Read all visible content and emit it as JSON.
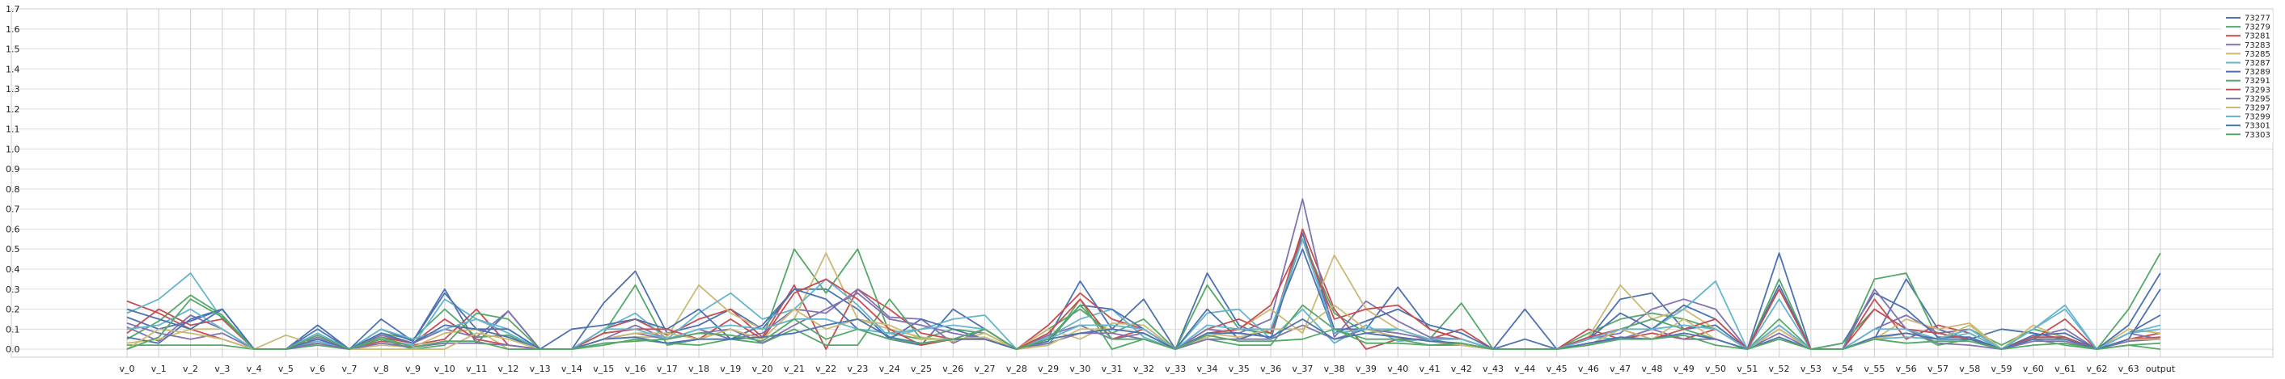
{
  "chart_data": {
    "type": "line",
    "title": "",
    "xlabel": "",
    "ylabel": "",
    "ylim": [
      -0.04,
      1.7
    ],
    "yticks": [
      0.0,
      0.1,
      0.2,
      0.3,
      0.4,
      0.5,
      0.6,
      0.7,
      0.8,
      0.9,
      1.0,
      1.1,
      1.2,
      1.3,
      1.4,
      1.5,
      1.6,
      1.7
    ],
    "ytick_labels": [
      "0.0",
      "0.1",
      "0.2",
      "0.3",
      "0.4",
      "0.5",
      "0.6",
      "0.7",
      "0.8",
      "0.9",
      "1.0",
      "1.1",
      "1.2",
      "1.3",
      "1.4",
      "1.5",
      "1.6",
      "1.7"
    ],
    "grid": true,
    "legend_position": "top-right",
    "categories": [
      "v_0",
      "v_1",
      "v_2",
      "v_3",
      "v_4",
      "v_5",
      "v_6",
      "v_7",
      "v_8",
      "v_9",
      "v_10",
      "v_11",
      "v_12",
      "v_13",
      "v_14",
      "v_15",
      "v_16",
      "v_17",
      "v_18",
      "v_19",
      "v_20",
      "v_21",
      "v_22",
      "v_23",
      "v_24",
      "v_25",
      "v_26",
      "v_27",
      "v_28",
      "v_29",
      "v_30",
      "v_31",
      "v_32",
      "v_33",
      "v_34",
      "v_35",
      "v_36",
      "v_37",
      "v_38",
      "v_39",
      "v_40",
      "v_41",
      "v_42",
      "v_43",
      "v_44",
      "v_45",
      "v_46",
      "v_47",
      "v_48",
      "v_49",
      "v_50",
      "v_51",
      "v_52",
      "v_53",
      "v_54",
      "v_55",
      "v_56",
      "v_57",
      "v_58",
      "v_59",
      "v_60",
      "v_61",
      "v_62",
      "v_63",
      "output"
    ],
    "series": [
      {
        "name": "73277",
        "color": "#4c72b0",
        "values": [
          0.16,
          0.1,
          0.14,
          0.2,
          0.0,
          0.0,
          0.12,
          0.0,
          0.15,
          0.04,
          0.3,
          0.03,
          0.19,
          0.0,
          0.0,
          0.23,
          0.39,
          0.08,
          0.12,
          0.2,
          0.1,
          0.3,
          0.3,
          0.2,
          0.05,
          0.02,
          0.2,
          0.1,
          0.0,
          0.06,
          0.34,
          0.1,
          0.25,
          0.0,
          0.38,
          0.12,
          0.05,
          0.58,
          0.1,
          0.1,
          0.31,
          0.1,
          0.05,
          0.0,
          0.2,
          0.0,
          0.05,
          0.25,
          0.28,
          0.1,
          0.12,
          0.0,
          0.48,
          0.0,
          0.0,
          0.05,
          0.35,
          0.1,
          0.05,
          0.1,
          0.08,
          0.05,
          0.0,
          0.08,
          0.17
        ]
      },
      {
        "name": "73279",
        "color": "#55a868",
        "values": [
          0.05,
          0.14,
          0.27,
          0.17,
          0.0,
          0.0,
          0.05,
          0.0,
          0.08,
          0.05,
          0.2,
          0.06,
          0.07,
          0.0,
          0.0,
          0.08,
          0.32,
          0.02,
          0.05,
          0.1,
          0.05,
          0.5,
          0.28,
          0.5,
          0.08,
          0.05,
          0.1,
          0.08,
          0.0,
          0.1,
          0.2,
          0.08,
          0.15,
          0.0,
          0.32,
          0.1,
          0.08,
          0.55,
          0.18,
          0.08,
          0.1,
          0.05,
          0.23,
          0.0,
          0.0,
          0.0,
          0.08,
          0.15,
          0.18,
          0.15,
          0.1,
          0.0,
          0.35,
          0.0,
          0.0,
          0.35,
          0.38,
          0.05,
          0.1,
          0.02,
          0.1,
          0.06,
          0.0,
          0.2,
          0.48
        ]
      },
      {
        "name": "73281",
        "color": "#c44e52",
        "values": [
          0.24,
          0.18,
          0.1,
          0.05,
          0.0,
          0.0,
          0.03,
          0.0,
          0.04,
          0.02,
          0.05,
          0.2,
          0.02,
          0.0,
          0.0,
          0.1,
          0.15,
          0.07,
          0.15,
          0.2,
          0.06,
          0.32,
          0.0,
          0.3,
          0.2,
          0.08,
          0.05,
          0.1,
          0.0,
          0.12,
          0.28,
          0.15,
          0.1,
          0.0,
          0.1,
          0.15,
          0.08,
          0.6,
          0.2,
          0.0,
          0.05,
          0.05,
          0.1,
          0.0,
          0.0,
          0.0,
          0.1,
          0.05,
          0.08,
          0.05,
          0.1,
          0.0,
          0.1,
          0.0,
          0.0,
          0.25,
          0.05,
          0.12,
          0.08,
          0.0,
          0.05,
          0.15,
          0.0,
          0.05,
          0.08
        ]
      },
      {
        "name": "73283",
        "color": "#8172b2",
        "values": [
          0.11,
          0.04,
          0.17,
          0.1,
          0.0,
          0.0,
          0.06,
          0.0,
          0.07,
          0.03,
          0.1,
          0.06,
          0.19,
          0.0,
          0.0,
          0.05,
          0.12,
          0.05,
          0.1,
          0.05,
          0.08,
          0.2,
          0.18,
          0.3,
          0.16,
          0.15,
          0.03,
          0.1,
          0.0,
          0.07,
          0.12,
          0.05,
          0.08,
          0.0,
          0.1,
          0.08,
          0.15,
          0.75,
          0.06,
          0.24,
          0.14,
          0.06,
          0.05,
          0.0,
          0.0,
          0.0,
          0.05,
          0.08,
          0.2,
          0.25,
          0.2,
          0.0,
          0.12,
          0.0,
          0.0,
          0.1,
          0.17,
          0.08,
          0.1,
          0.0,
          0.06,
          0.1,
          0.0,
          0.08,
          0.05
        ]
      },
      {
        "name": "73285",
        "color": "#ccb974",
        "values": [
          0.03,
          0.05,
          0.1,
          0.1,
          0.0,
          0.07,
          0.02,
          0.0,
          0.02,
          0.01,
          0.08,
          0.1,
          0.0,
          0.0,
          0.0,
          0.05,
          0.06,
          0.06,
          0.32,
          0.18,
          0.1,
          0.15,
          0.48,
          0.15,
          0.1,
          0.06,
          0.04,
          0.08,
          0.0,
          0.1,
          0.05,
          0.13,
          0.12,
          0.0,
          0.06,
          0.1,
          0.2,
          0.08,
          0.47,
          0.2,
          0.1,
          0.05,
          0.02,
          0.0,
          0.0,
          0.0,
          0.06,
          0.32,
          0.15,
          0.2,
          0.1,
          0.0,
          0.3,
          0.0,
          0.0,
          0.05,
          0.15,
          0.1,
          0.13,
          0.0,
          0.12,
          0.05,
          0.0,
          0.1,
          0.08
        ]
      },
      {
        "name": "73287",
        "color": "#64b5cd",
        "values": [
          0.18,
          0.25,
          0.38,
          0.15,
          0.0,
          0.0,
          0.04,
          0.0,
          0.05,
          0.02,
          0.25,
          0.15,
          0.08,
          0.0,
          0.0,
          0.1,
          0.18,
          0.05,
          0.18,
          0.28,
          0.15,
          0.2,
          0.35,
          0.22,
          0.06,
          0.1,
          0.15,
          0.17,
          0.0,
          0.06,
          0.15,
          0.2,
          0.06,
          0.0,
          0.18,
          0.2,
          0.05,
          0.2,
          0.03,
          0.12,
          0.04,
          0.05,
          0.05,
          0.0,
          0.0,
          0.0,
          0.06,
          0.05,
          0.1,
          0.2,
          0.34,
          0.0,
          0.25,
          0.0,
          0.0,
          0.05,
          0.06,
          0.05,
          0.08,
          0.0,
          0.1,
          0.22,
          0.0,
          0.08,
          0.1
        ]
      },
      {
        "name": "73289",
        "color": "#4c72b0",
        "values": [
          0.06,
          0.03,
          0.15,
          0.2,
          0.0,
          0.0,
          0.1,
          0.0,
          0.1,
          0.04,
          0.28,
          0.1,
          0.06,
          0.0,
          0.1,
          0.12,
          0.15,
          0.1,
          0.2,
          0.05,
          0.12,
          0.3,
          0.25,
          0.1,
          0.05,
          0.15,
          0.1,
          0.05,
          0.0,
          0.04,
          0.22,
          0.2,
          0.1,
          0.0,
          0.2,
          0.05,
          0.1,
          0.5,
          0.08,
          0.14,
          0.2,
          0.12,
          0.08,
          0.0,
          0.05,
          0.0,
          0.05,
          0.18,
          0.1,
          0.22,
          0.15,
          0.0,
          0.32,
          0.0,
          0.03,
          0.28,
          0.2,
          0.06,
          0.06,
          0.0,
          0.07,
          0.08,
          0.0,
          0.12,
          0.38
        ]
      },
      {
        "name": "73291",
        "color": "#55a868",
        "values": [
          0.02,
          0.02,
          0.02,
          0.02,
          0.0,
          0.0,
          0.02,
          0.0,
          0.05,
          0.0,
          0.02,
          0.18,
          0.15,
          0.0,
          0.0,
          0.02,
          0.05,
          0.03,
          0.02,
          0.05,
          0.03,
          0.1,
          0.02,
          0.02,
          0.25,
          0.05,
          0.05,
          0.1,
          0.0,
          0.02,
          0.25,
          0.0,
          0.05,
          0.0,
          0.05,
          0.02,
          0.02,
          0.22,
          0.1,
          0.05,
          0.05,
          0.02,
          0.02,
          0.0,
          0.0,
          0.0,
          0.02,
          0.1,
          0.15,
          0.1,
          0.05,
          0.0,
          0.15,
          0.0,
          0.03,
          0.2,
          0.1,
          0.02,
          0.05,
          0.0,
          0.05,
          0.02,
          0.0,
          0.02,
          0.03
        ]
      },
      {
        "name": "73293",
        "color": "#c44e52",
        "values": [
          0.08,
          0.2,
          0.12,
          0.15,
          0.0,
          0.0,
          0.05,
          0.0,
          0.06,
          0.03,
          0.15,
          0.05,
          0.02,
          0.0,
          0.0,
          0.08,
          0.1,
          0.1,
          0.05,
          0.15,
          0.05,
          0.28,
          0.35,
          0.25,
          0.1,
          0.02,
          0.05,
          0.05,
          0.0,
          0.08,
          0.25,
          0.05,
          0.1,
          0.0,
          0.08,
          0.1,
          0.22,
          0.55,
          0.15,
          0.2,
          0.22,
          0.1,
          0.05,
          0.0,
          0.0,
          0.0,
          0.06,
          0.1,
          0.05,
          0.1,
          0.15,
          0.0,
          0.3,
          0.0,
          0.0,
          0.2,
          0.1,
          0.08,
          0.05,
          0.0,
          0.06,
          0.06,
          0.0,
          0.05,
          0.06
        ]
      },
      {
        "name": "73295",
        "color": "#8172b2",
        "values": [
          0.13,
          0.08,
          0.05,
          0.08,
          0.0,
          0.0,
          0.03,
          0.0,
          0.03,
          0.01,
          0.03,
          0.03,
          0.02,
          0.0,
          0.0,
          0.05,
          0.08,
          0.05,
          0.08,
          0.1,
          0.03,
          0.12,
          0.2,
          0.28,
          0.15,
          0.12,
          0.08,
          0.05,
          0.0,
          0.03,
          0.08,
          0.08,
          0.05,
          0.0,
          0.05,
          0.05,
          0.05,
          0.12,
          0.05,
          0.1,
          0.08,
          0.05,
          0.02,
          0.0,
          0.0,
          0.0,
          0.03,
          0.05,
          0.1,
          0.05,
          0.05,
          0.0,
          0.08,
          0.0,
          0.0,
          0.3,
          0.1,
          0.03,
          0.02,
          0.0,
          0.04,
          0.04,
          0.0,
          0.04,
          0.05
        ]
      },
      {
        "name": "73297",
        "color": "#ccb974",
        "values": [
          0.0,
          0.1,
          0.08,
          0.05,
          0.0,
          0.0,
          0.05,
          0.0,
          0.0,
          0.0,
          0.0,
          0.08,
          0.05,
          0.0,
          0.0,
          0.05,
          0.08,
          0.08,
          0.05,
          0.1,
          0.05,
          0.2,
          0.1,
          0.15,
          0.12,
          0.05,
          0.05,
          0.06,
          0.0,
          0.02,
          0.1,
          0.1,
          0.08,
          0.0,
          0.08,
          0.06,
          0.1,
          0.1,
          0.22,
          0.1,
          0.06,
          0.04,
          0.02,
          0.0,
          0.0,
          0.0,
          0.02,
          0.1,
          0.05,
          0.15,
          0.05,
          0.0,
          0.1,
          0.0,
          0.0,
          0.05,
          0.08,
          0.05,
          0.12,
          0.0,
          0.05,
          0.05,
          0.0,
          0.05,
          0.05
        ]
      },
      {
        "name": "73299",
        "color": "#64b5cd",
        "values": [
          0.1,
          0.12,
          0.2,
          0.1,
          0.0,
          0.0,
          0.08,
          0.0,
          0.1,
          0.05,
          0.1,
          0.15,
          0.1,
          0.0,
          0.0,
          0.1,
          0.1,
          0.05,
          0.1,
          0.12,
          0.1,
          0.15,
          0.15,
          0.1,
          0.08,
          0.1,
          0.12,
          0.1,
          0.0,
          0.05,
          0.12,
          0.12,
          0.1,
          0.0,
          0.12,
          0.1,
          0.1,
          0.55,
          0.08,
          0.1,
          0.1,
          0.05,
          0.05,
          0.0,
          0.0,
          0.0,
          0.05,
          0.1,
          0.1,
          0.12,
          0.1,
          0.0,
          0.12,
          0.0,
          0.0,
          0.1,
          0.1,
          0.05,
          0.1,
          0.0,
          0.1,
          0.2,
          0.0,
          0.08,
          0.12
        ]
      },
      {
        "name": "73301",
        "color": "#4c72b0",
        "values": [
          0.2,
          0.15,
          0.1,
          0.2,
          0.0,
          0.0,
          0.05,
          0.0,
          0.08,
          0.03,
          0.12,
          0.1,
          0.1,
          0.0,
          0.0,
          0.05,
          0.06,
          0.03,
          0.05,
          0.05,
          0.06,
          0.08,
          0.12,
          0.15,
          0.06,
          0.03,
          0.05,
          0.05,
          0.0,
          0.05,
          0.08,
          0.1,
          0.08,
          0.0,
          0.08,
          0.08,
          0.06,
          0.15,
          0.05,
          0.08,
          0.06,
          0.04,
          0.03,
          0.0,
          0.0,
          0.0,
          0.03,
          0.06,
          0.05,
          0.08,
          0.05,
          0.0,
          0.06,
          0.0,
          0.0,
          0.06,
          0.08,
          0.05,
          0.05,
          0.0,
          0.05,
          0.05,
          0.0,
          0.05,
          0.3
        ]
      },
      {
        "name": "73303",
        "color": "#55a868",
        "values": [
          0.0,
          0.06,
          0.25,
          0.16,
          0.0,
          0.0,
          0.07,
          0.0,
          0.06,
          0.01,
          0.04,
          0.04,
          0.0,
          0.0,
          0.0,
          0.03,
          0.04,
          0.05,
          0.08,
          0.07,
          0.04,
          0.15,
          0.05,
          0.1,
          0.05,
          0.03,
          0.05,
          0.1,
          0.0,
          0.05,
          0.22,
          0.05,
          0.05,
          0.0,
          0.07,
          0.04,
          0.04,
          0.05,
          0.1,
          0.03,
          0.03,
          0.02,
          0.03,
          0.0,
          0.0,
          0.0,
          0.02,
          0.05,
          0.05,
          0.07,
          0.02,
          0.0,
          0.05,
          0.0,
          0.0,
          0.05,
          0.03,
          0.04,
          0.04,
          0.0,
          0.02,
          0.03,
          0.0,
          0.02,
          0.0
        ]
      }
    ]
  }
}
